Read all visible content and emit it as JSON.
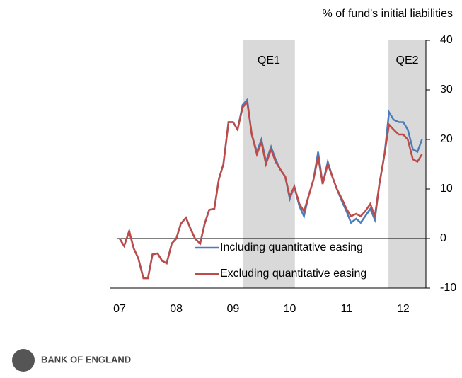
{
  "chart_data": {
    "type": "line",
    "y_axis_label": "% of fund's initial liabilities",
    "x": [
      2007,
      2007.08,
      2007.17,
      2007.25,
      2007.33,
      2007.42,
      2007.5,
      2007.58,
      2007.67,
      2007.75,
      2007.83,
      2007.92,
      2008,
      2008.08,
      2008.17,
      2008.25,
      2008.33,
      2008.42,
      2008.5,
      2008.58,
      2008.67,
      2008.75,
      2008.83,
      2008.92,
      2009,
      2009.08,
      2009.17,
      2009.25,
      2009.33,
      2009.42,
      2009.5,
      2009.58,
      2009.67,
      2009.75,
      2009.83,
      2009.92,
      2010,
      2010.08,
      2010.17,
      2010.25,
      2010.33,
      2010.42,
      2010.5,
      2010.58,
      2010.67,
      2010.75,
      2010.83,
      2010.92,
      2011,
      2011.08,
      2011.17,
      2011.25,
      2011.33,
      2011.42,
      2011.5,
      2011.58,
      2011.67,
      2011.75,
      2011.83,
      2011.92,
      2012,
      2012.08,
      2012.17,
      2012.25,
      2012.33
    ],
    "series": [
      {
        "name": "Including quantitative easing",
        "color": "#4a7ebb",
        "values": [
          0,
          -1.5,
          1.5,
          -2,
          -4,
          -8,
          -8,
          -3.2,
          -3,
          -4.5,
          -5,
          -1,
          0,
          3,
          4.2,
          2,
          0,
          -1,
          3,
          5.8,
          6,
          12,
          15,
          23.5,
          23.5,
          22,
          27,
          28,
          21,
          17.5,
          20,
          15.5,
          18.5,
          16,
          14,
          12.5,
          8,
          10.5,
          6.5,
          4.5,
          8.5,
          12,
          17.5,
          11,
          15.5,
          12.5,
          10,
          7.5,
          5.5,
          3.2,
          4,
          3.2,
          4.5,
          6,
          3.8,
          11,
          17,
          25.5,
          24,
          23.5,
          23.5,
          22,
          18,
          17.5,
          20
        ]
      },
      {
        "name": "Excluding quantitative easing",
        "color": "#be4b48",
        "values": [
          0,
          -1.5,
          1.5,
          -2,
          -4,
          -8,
          -8,
          -3.2,
          -3,
          -4.5,
          -5,
          -1,
          0,
          3,
          4.2,
          2,
          0,
          -1,
          3,
          5.8,
          6,
          12,
          15,
          23.5,
          23.5,
          22,
          26.5,
          27.5,
          21,
          17,
          19.5,
          15,
          18,
          15.5,
          14,
          12.5,
          8.5,
          10.5,
          7,
          5.5,
          8.5,
          12,
          16.5,
          11,
          15,
          12.5,
          10,
          8,
          6,
          4.5,
          5,
          4.5,
          5.5,
          7,
          4.5,
          11,
          17,
          23,
          22,
          21,
          21,
          20,
          16,
          15.5,
          17
        ]
      }
    ],
    "shaded": [
      {
        "label": "QE1",
        "start": 2009.17,
        "end": 2010.09
      },
      {
        "label": "QE2",
        "start": 2011.74,
        "end": 2012.4
      }
    ],
    "xlim": [
      2006.95,
      2012.4
    ],
    "xticks": [
      {
        "value": 2007,
        "label": "07"
      },
      {
        "value": 2008,
        "label": "08"
      },
      {
        "value": 2009,
        "label": "09"
      },
      {
        "value": 2010,
        "label": "10"
      },
      {
        "value": 2011,
        "label": "11"
      },
      {
        "value": 2012,
        "label": "12"
      }
    ],
    "ylim": [
      -10,
      40
    ],
    "yticks": [
      -10,
      0,
      10,
      20,
      30,
      40
    ],
    "legend": "lower left",
    "footer": "BANK OF ENGLAND"
  }
}
